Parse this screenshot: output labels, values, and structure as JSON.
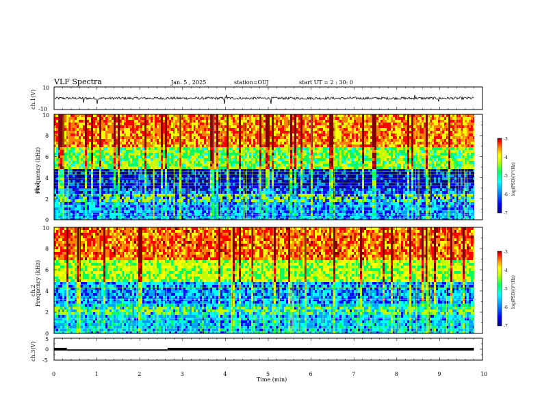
{
  "header": {
    "title": "VLF Spectra",
    "date": "Jan. 5 , 2025",
    "station": "station=OUJ",
    "start_ut": "start UT =  2 : 30: 0"
  },
  "chart_data": [
    {
      "type": "line",
      "name": "ch1-waveform",
      "ylabel": "ch.1(V)",
      "ylim": [
        -10,
        10
      ],
      "y_ticks": [
        "10",
        "-10"
      ],
      "baseline": 0,
      "spikes": [
        [
          0.68,
          -4
        ],
        [
          1.01,
          -5
        ],
        [
          3.98,
          -5
        ],
        [
          4.02,
          3
        ],
        [
          5.07,
          -5
        ],
        [
          8.42,
          3
        ],
        [
          8.97,
          -3
        ]
      ]
    },
    {
      "type": "heatmap",
      "name": "ch1-spectrogram",
      "ylabel": "ch.1\nFrequency (kHz)",
      "ylim": [
        0,
        10
      ],
      "xlim": [
        0,
        10
      ],
      "y_ticks": [
        "0",
        "2",
        "4",
        "6",
        "8",
        "10"
      ],
      "colorbar": {
        "label": "log(PSD)(V²/Hz)",
        "range": [
          -7,
          -3
        ],
        "ticks": [
          "-3",
          "-4",
          "-5",
          "-6",
          "-7"
        ]
      },
      "bands": [
        {
          "f_khz": [
            7,
            10
          ],
          "level": -4.0
        },
        {
          "f_khz": [
            5,
            7
          ],
          "level": -5.0
        },
        {
          "f_khz": [
            3,
            5
          ],
          "level": -6.5
        },
        {
          "f_khz": [
            2,
            3
          ],
          "level": -6.2
        },
        {
          "f_khz": [
            0,
            2
          ],
          "level": -6.0
        }
      ],
      "emission_khz": 2.2
    },
    {
      "type": "heatmap",
      "name": "ch2-spectrogram",
      "ylabel": "ch.2\nFrequency (kHz)",
      "ylim": [
        0,
        10
      ],
      "xlim": [
        0,
        10
      ],
      "y_ticks": [
        "0",
        "2",
        "4",
        "6",
        "8",
        "10"
      ],
      "colorbar": {
        "label": "log(PSD)(V²/Hz)",
        "range": [
          -7,
          -3
        ],
        "ticks": [
          "-3",
          "-4",
          "-5",
          "-6",
          "-7"
        ]
      },
      "bands": [
        {
          "f_khz": [
            7,
            10
          ],
          "level": -3.9
        },
        {
          "f_khz": [
            5,
            7
          ],
          "level": -4.8
        },
        {
          "f_khz": [
            3,
            5
          ],
          "level": -6.0
        },
        {
          "f_khz": [
            2,
            3
          ],
          "level": -5.7
        },
        {
          "f_khz": [
            0,
            2
          ],
          "level": -5.8
        }
      ],
      "emission_khz": 2.2
    },
    {
      "type": "line",
      "name": "ch3-waveform",
      "ylabel": "ch.3(V)",
      "ylim": [
        -5,
        5
      ],
      "y_ticks": [
        "5",
        "0",
        "-5"
      ],
      "segments": [
        {
          "x": [
            0,
            0.3
          ],
          "y": 0
        },
        {
          "x": [
            0.3,
            2.65
          ],
          "y": -0.4
        },
        {
          "x": [
            2.65,
            9.8
          ],
          "y": 0
        }
      ]
    }
  ],
  "x_axis": {
    "label": "Time (min)",
    "range": [
      0,
      10
    ],
    "ticks": [
      "0",
      "1",
      "2",
      "3",
      "4",
      "5",
      "6",
      "7",
      "8",
      "9",
      "10"
    ]
  },
  "colors": {
    "colormap": [
      "#000080",
      "#0000ff",
      "#00a0ff",
      "#00ffff",
      "#00ff60",
      "#c0ff00",
      "#ffff00",
      "#ff8000",
      "#ff0000",
      "#800000"
    ],
    "trace": "#000000"
  }
}
